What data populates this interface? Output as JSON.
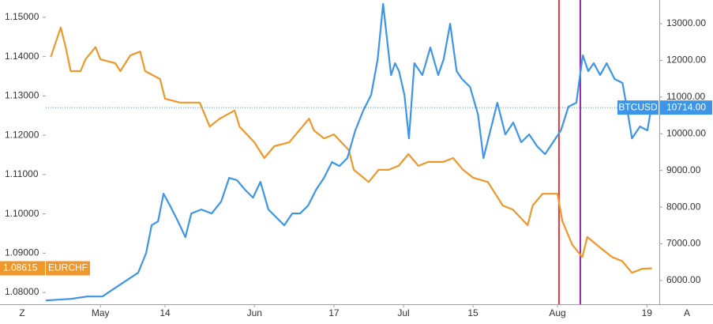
{
  "chart_data": {
    "type": "line",
    "xlim": [
      110,
      233.5
    ],
    "xticks": [
      {
        "value": 121,
        "label": "May"
      },
      {
        "value": 134,
        "label": "14"
      },
      {
        "value": 152,
        "label": "Jun"
      },
      {
        "value": 168,
        "label": "17"
      },
      {
        "value": 182,
        "label": "Jul"
      },
      {
        "value": 196,
        "label": "15"
      },
      {
        "value": 213,
        "label": "Aug"
      },
      {
        "value": 231,
        "label": "19"
      }
    ],
    "ylim": [
      1.077,
      1.1544
    ],
    "yticks": [
      {
        "value": 1.08,
        "label": "1.08000"
      },
      {
        "value": 1.09,
        "label": "1.09000"
      },
      {
        "value": 1.1,
        "label": "1.10000"
      },
      {
        "value": 1.11,
        "label": "1.11000"
      },
      {
        "value": 1.12,
        "label": "1.12000"
      },
      {
        "value": 1.13,
        "label": "1.13000"
      },
      {
        "value": 1.14,
        "label": "1.14000"
      },
      {
        "value": 1.15,
        "label": "1.15000"
      }
    ],
    "y2lim": [
      5353,
      13646
    ],
    "y2ticks": [
      {
        "value": 6000,
        "label": "6000.00"
      },
      {
        "value": 7000,
        "label": "7000.00"
      },
      {
        "value": 8000,
        "label": "8000.00"
      },
      {
        "value": 9000,
        "label": "9000.00"
      },
      {
        "value": 10000,
        "label": "10000.00"
      },
      {
        "value": 11000,
        "label": "11000.00"
      },
      {
        "value": 12000,
        "label": "12000.00"
      },
      {
        "value": 13000,
        "label": "13000.00"
      }
    ],
    "grid": false,
    "series": [
      {
        "name": "EURCHF",
        "color": "#f0972a",
        "axis": "y",
        "x": [
          111,
          113,
          114,
          115,
          117,
          118,
          120,
          121,
          124,
          125,
          127,
          129,
          130,
          133,
          134,
          137,
          139,
          141,
          143,
          145,
          148,
          149,
          152,
          154,
          156,
          159,
          161,
          163,
          164,
          166,
          168,
          171,
          172,
          175,
          177,
          179,
          181,
          183,
          185,
          187,
          190,
          192,
          194,
          196,
          199,
          200,
          202,
          204,
          207,
          208,
          210,
          213,
          214,
          216,
          218,
          219,
          222,
          224,
          226,
          228,
          230,
          232
        ],
        "values": [
          1.1399,
          1.1474,
          1.1424,
          1.1363,
          1.1363,
          1.1393,
          1.1424,
          1.1393,
          1.1383,
          1.1363,
          1.1403,
          1.1413,
          1.1363,
          1.1343,
          1.1293,
          1.1283,
          1.1283,
          1.1283,
          1.1222,
          1.1242,
          1.1263,
          1.1222,
          1.1182,
          1.1142,
          1.1172,
          1.1182,
          1.1212,
          1.1242,
          1.1212,
          1.1192,
          1.1202,
          1.1162,
          1.1112,
          1.1081,
          1.1112,
          1.1112,
          1.1122,
          1.1152,
          1.1122,
          1.1132,
          1.1132,
          1.1142,
          1.1112,
          1.1092,
          1.1081,
          1.1061,
          1.1021,
          1.1011,
          1.0971,
          1.1021,
          1.1051,
          1.1051,
          1.0981,
          1.0921,
          1.089,
          1.0941,
          1.091,
          1.089,
          1.088,
          1.085,
          1.086,
          1.08615
        ],
        "last": 1.08615
      },
      {
        "name": "BTCUSD",
        "color": "#3d95e8",
        "axis": "y2",
        "x": [
          110,
          115.1,
          118.3,
          121.4,
          123.8,
          126.2,
          128.6,
          130.2,
          131.3,
          132.6,
          133.7,
          135,
          136.6,
          138.1,
          139.3,
          141.3,
          143.4,
          145.3,
          146.9,
          148.5,
          150.1,
          151.7,
          153.2,
          154.8,
          156.4,
          158,
          159.6,
          161.2,
          162.8,
          164.4,
          166,
          167.6,
          169.1,
          170.7,
          172.3,
          173.9,
          175.5,
          176.8,
          177.9,
          178.7,
          179.5,
          180.3,
          181.1,
          182.2,
          183.1,
          184.2,
          185.8,
          187.4,
          189,
          190.1,
          191.4,
          192.7,
          193.8,
          195.4,
          197,
          198.1,
          199.3,
          200.9,
          202.5,
          204.1,
          205.7,
          207.3,
          208.9,
          210.5,
          212.1,
          213.7,
          215.2,
          216.8,
          218.1,
          219.2,
          220.3,
          221.6,
          222.9,
          224.5,
          226.1,
          227.2,
          228,
          229.6,
          231.1,
          231.9
        ],
        "values": [
          5457,
          5500,
          5565,
          5565,
          5781,
          5996,
          6212,
          6750,
          7505,
          7612,
          8367,
          8044,
          7612,
          7182,
          7828,
          7936,
          7828,
          8151,
          8798,
          8733,
          8475,
          8259,
          8690,
          7936,
          7720,
          7505,
          7828,
          7828,
          8044,
          8475,
          8798,
          9229,
          9121,
          9337,
          10091,
          10630,
          11061,
          12030,
          13539,
          12569,
          11599,
          11923,
          11707,
          11061,
          9875,
          11923,
          11599,
          12354,
          11599,
          12030,
          13000,
          11707,
          11492,
          11276,
          10522,
          9337,
          9983,
          10845,
          9983,
          10306,
          9768,
          9983,
          9660,
          9444,
          9768,
          10091,
          10737,
          10845,
          12138,
          11707,
          11923,
          11599,
          11923,
          11492,
          11384,
          10522,
          9875,
          10198,
          10091,
          10714
        ],
        "last": {
          "value": 10714,
          "label": "10714.00"
        }
      }
    ],
    "vlines": [
      {
        "x": 213.3,
        "color": "#e53935"
      },
      {
        "x": 217.6,
        "color": "#9c27b0"
      }
    ]
  },
  "ui": {
    "left_button": "Z",
    "right_button": "A"
  }
}
